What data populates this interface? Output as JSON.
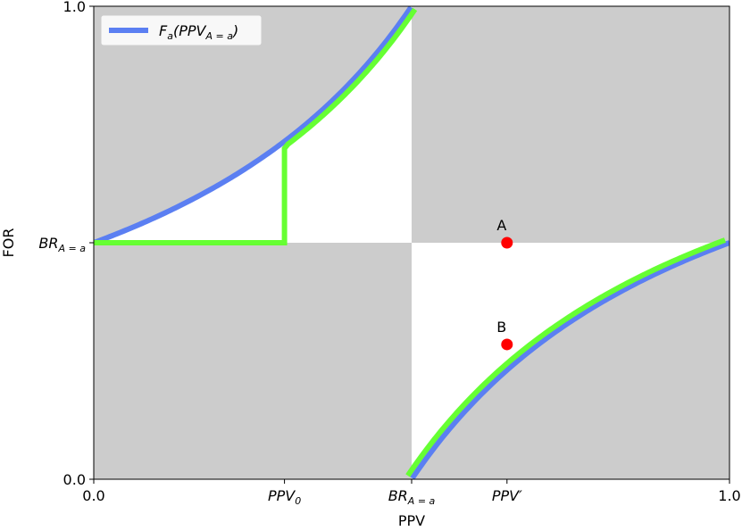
{
  "chart_data": {
    "type": "line",
    "xlabel": "PPV",
    "ylabel": "FOR",
    "xlim": [
      0,
      1
    ],
    "ylim": [
      0,
      1
    ],
    "grid": false,
    "legend_position": "top-left",
    "base_rate": 0.5,
    "ppv0": 0.3,
    "ppv_prime": 0.65,
    "x_ticks": [
      {
        "value": 0.0,
        "label": "0.0",
        "math": false,
        "base": "",
        "sub": "",
        "prime": false
      },
      {
        "value": 0.3,
        "label": "PPV_0",
        "math": true,
        "base": "PPV",
        "sub": "0",
        "prime": false
      },
      {
        "value": 0.5,
        "label": "BR_A=a",
        "math": true,
        "base": "BR",
        "sub": "A = a",
        "prime": false
      },
      {
        "value": 0.65,
        "label": "PPV'",
        "math": true,
        "base": "PPV",
        "sub": "",
        "prime": true
      },
      {
        "value": 1.0,
        "label": "1.0",
        "math": false,
        "base": "",
        "sub": "",
        "prime": false
      }
    ],
    "y_ticks": [
      {
        "value": 0.0,
        "label": "0.0",
        "math": false,
        "base": "",
        "sub": ""
      },
      {
        "value": 0.5,
        "label": "BR_A=a",
        "math": true,
        "base": "BR",
        "sub": "A = a"
      },
      {
        "value": 1.0,
        "label": "1.0",
        "math": false,
        "base": "",
        "sub": ""
      }
    ],
    "series": [
      {
        "name": "F_a(PPV_A=a)",
        "legend_base": "F",
        "legend_sub": "a",
        "legend_paren_base": "PPV",
        "legend_paren_sub": "A = a",
        "color": "#5b7ff2",
        "relation": "FOR = BR*(1-PPV)/(1-2*BR+BR*... ) hyperbola pair"
      },
      {
        "name": "",
        "color": "#66ff33",
        "relation": "piecewise constrained path"
      }
    ],
    "shaded_regions_color": "#cccccc",
    "points": [
      {
        "label": "A",
        "x": 0.65,
        "y": 0.5,
        "color": "#ff0000"
      },
      {
        "label": "B",
        "x": 0.65,
        "y": 0.285,
        "color": "#ff0000"
      }
    ]
  }
}
